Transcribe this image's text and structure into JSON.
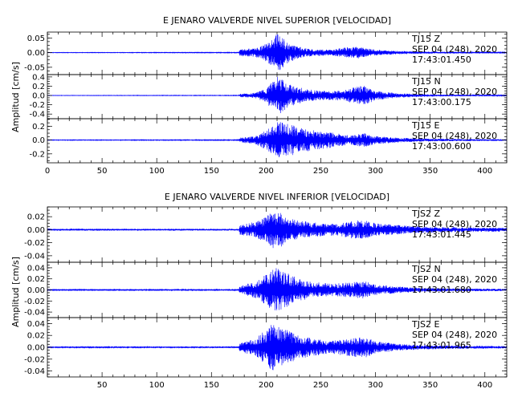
{
  "colors": {
    "trace": "#0000ff",
    "axes": "#000000",
    "background": "#ffffff"
  },
  "chart_data": [
    {
      "type": "line",
      "title": "E JENARO VALVERDE NIVEL SUPERIOR [VELOCIDAD]",
      "ylabel": "Amplitud [cm/s]",
      "xlabel": "",
      "xlim": [
        0,
        420
      ],
      "xticks": [
        0,
        50,
        100,
        150,
        200,
        250,
        300,
        350,
        400
      ],
      "xtick_labels": [
        "0",
        "50",
        "100",
        "150",
        "200",
        "250",
        "300",
        "350",
        "400"
      ],
      "grid": false,
      "panels": [
        {
          "station": "TJ15",
          "component": "Z",
          "date": "SEP 04 (248), 2020",
          "time": "17:43:01.450",
          "ylim": [
            -0.075,
            0.07
          ],
          "yticks": [
            -0.05,
            0.0,
            0.05
          ],
          "ytick_labels": [
            "-0.05",
            "0.00",
            "0.05"
          ],
          "envelope": {
            "x": [
              0,
              175,
              176,
              190,
              200,
              205,
              210,
              215,
              220,
              230,
              240,
              260,
              270,
              285,
              290,
              300,
              320,
              340,
              360,
              420
            ],
            "amp": [
              0.0008,
              0.0012,
              0.012,
              0.015,
              0.03,
              0.045,
              0.065,
              0.055,
              0.035,
              0.02,
              0.013,
              0.01,
              0.018,
              0.02,
              0.016,
              0.01,
              0.006,
              0.004,
              0.003,
              0.0015
            ]
          }
        },
        {
          "station": "TJ15",
          "component": "N",
          "date": "SEP 04 (248), 2020",
          "time": "17:43:00.175",
          "ylim": [
            -0.5,
            0.45
          ],
          "yticks": [
            -0.4,
            -0.2,
            0.0,
            0.2,
            0.4
          ],
          "ytick_labels": [
            "-0.4",
            "-0.2",
            "0.0",
            "0.2",
            "0.4"
          ],
          "envelope": {
            "x": [
              0,
              175,
              176,
              190,
              200,
              205,
              210,
              215,
              220,
              235,
              250,
              270,
              285,
              290,
              300,
              320,
              340,
              360,
              420
            ],
            "amp": [
              0.004,
              0.006,
              0.035,
              0.06,
              0.15,
              0.3,
              0.42,
              0.36,
              0.25,
              0.15,
              0.1,
              0.11,
              0.2,
              0.22,
              0.1,
              0.05,
              0.03,
              0.02,
              0.01
            ]
          }
        },
        {
          "station": "TJ15",
          "component": "E",
          "date": "SEP 04 (248), 2020",
          "time": "17:43:00.600",
          "ylim": [
            -0.33,
            0.31
          ],
          "yticks": [
            -0.2,
            0.0,
            0.2
          ],
          "ytick_labels": [
            "-0.2",
            "0.0",
            "0.2"
          ],
          "envelope": {
            "x": [
              0,
              175,
              176,
              190,
              200,
              205,
              210,
              220,
              230,
              245,
              260,
              275,
              290,
              300,
              320,
              340,
              360,
              420
            ],
            "amp": [
              0.004,
              0.006,
              0.035,
              0.06,
              0.14,
              0.2,
              0.27,
              0.24,
              0.19,
              0.14,
              0.11,
              0.07,
              0.1,
              0.06,
              0.035,
              0.025,
              0.018,
              0.01
            ]
          }
        }
      ]
    },
    {
      "type": "line",
      "title": "E JENARO VALVERDE NIVEL INFERIOR [VELOCIDAD]",
      "ylabel": "Amplitud [cm/s]",
      "xlabel": "",
      "xlim": [
        0,
        420
      ],
      "xticks": [
        50,
        100,
        150,
        200,
        250,
        300,
        350,
        400
      ],
      "xtick_labels": [
        "50",
        "100",
        "150",
        "200",
        "250",
        "300",
        "350",
        "400"
      ],
      "grid": false,
      "panels": [
        {
          "station": "TJS2",
          "component": "Z",
          "date": "SEP 04 (248), 2020",
          "time": "17:43:01.445",
          "ylim": [
            -0.05,
            0.035
          ],
          "yticks": [
            -0.04,
            -0.02,
            0.0,
            0.02
          ],
          "ytick_labels": [
            "-0.04",
            "-0.02",
            "0.00",
            "0.02"
          ],
          "envelope": {
            "x": [
              0,
              175,
              176,
              190,
              200,
              205,
              210,
              215,
              220,
              230,
              250,
              265,
              280,
              290,
              300,
              330,
              360,
              420
            ],
            "amp": [
              0.0008,
              0.0012,
              0.008,
              0.012,
              0.02,
              0.028,
              0.03,
              0.026,
              0.018,
              0.014,
              0.01,
              0.009,
              0.014,
              0.015,
              0.01,
              0.006,
              0.004,
              0.003
            ]
          }
        },
        {
          "station": "TJS2",
          "component": "N",
          "date": "SEP 04 (248), 2020",
          "time": "17:43:01.680",
          "ylim": [
            -0.05,
            0.05
          ],
          "yticks": [
            -0.04,
            -0.02,
            0.0,
            0.02,
            0.04
          ],
          "ytick_labels": [
            "-0.04",
            "-0.02",
            "0.00",
            "0.02",
            "0.04"
          ],
          "envelope": {
            "x": [
              0,
              175,
              176,
              190,
              200,
              205,
              210,
              220,
              230,
              245,
              260,
              280,
              290,
              300,
              320,
              340,
              360,
              420
            ],
            "amp": [
              0.0008,
              0.0012,
              0.008,
              0.015,
              0.028,
              0.036,
              0.04,
              0.03,
              0.02,
              0.014,
              0.011,
              0.014,
              0.016,
              0.01,
              0.006,
              0.004,
              0.003,
              0.002
            ]
          }
        },
        {
          "station": "TJS2",
          "component": "E",
          "date": "SEP 04 (248), 2020",
          "time": "17:43:01.965",
          "ylim": [
            -0.05,
            0.05
          ],
          "yticks": [
            -0.04,
            -0.02,
            0.0,
            0.02,
            0.04
          ],
          "ytick_labels": [
            "-0.04",
            "-0.02",
            "0.00",
            "0.02",
            "0.04"
          ],
          "envelope": {
            "x": [
              0,
              175,
              176,
              190,
              200,
              205,
              210,
              220,
              230,
              245,
              260,
              280,
              290,
              300,
              320,
              340,
              360,
              420
            ],
            "amp": [
              0.0008,
              0.0012,
              0.008,
              0.014,
              0.03,
              0.04,
              0.038,
              0.028,
              0.02,
              0.014,
              0.011,
              0.016,
              0.018,
              0.01,
              0.006,
              0.004,
              0.003,
              0.002
            ]
          }
        }
      ]
    }
  ]
}
